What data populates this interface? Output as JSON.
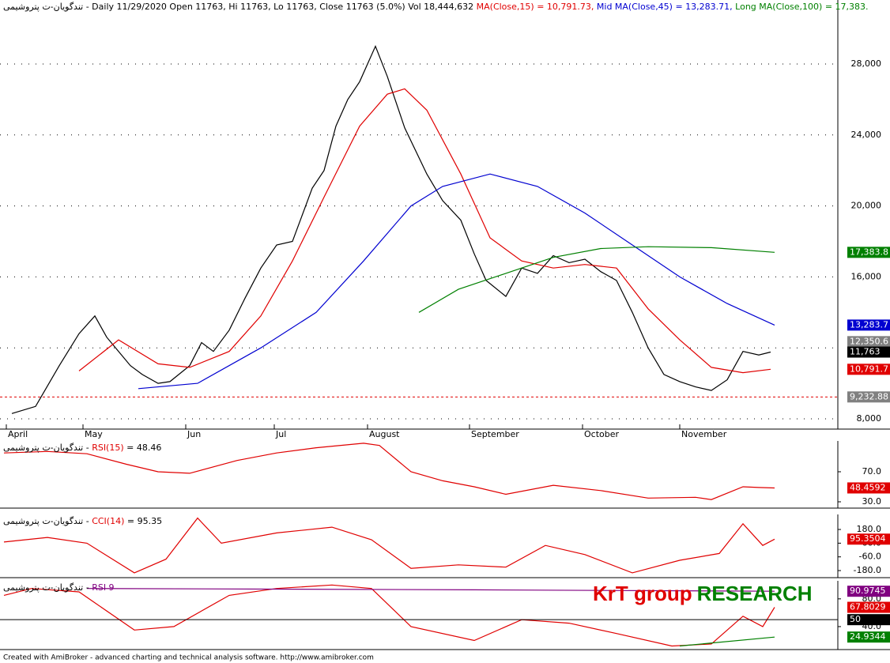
{
  "chart_data": [
    {
      "type": "line",
      "title": [
        {
          "text": "تندگویان-ت پتروشیمی - Daily 11/29/2020 Open 11763, Hi 11763, Lo 11763, Close 11763 (5.0%) Vol 18,444,632 ",
          "color": "#000000"
        },
        {
          "text": "MA(Close,15) = 10,791.73, ",
          "color": "#e00000"
        },
        {
          "text": "Mid MA(Close,45) = 13,283.71, ",
          "color": "#0000d0"
        },
        {
          "text": "Long MA(Close,100) = 17,383.",
          "color": "#008000"
        }
      ],
      "xlim": [
        0,
        1060
      ],
      "ylim": [
        7421,
        31608
      ],
      "xticks": [
        {
          "value": 8,
          "label": "April"
        },
        {
          "value": 105,
          "label": "May"
        },
        {
          "value": 235,
          "label": "Jun"
        },
        {
          "value": 347,
          "label": "Jul"
        },
        {
          "value": 465,
          "label": "August"
        },
        {
          "value": 594,
          "label": "September"
        },
        {
          "value": 737,
          "label": "October"
        },
        {
          "value": 860,
          "label": "November"
        }
      ],
      "yticks": [
        {
          "value": 8000,
          "label": "8,000"
        },
        {
          "value": 12000,
          "label": "12,000"
        },
        {
          "value": 16000,
          "label": "16,000"
        },
        {
          "value": 20000,
          "label": "20,000"
        },
        {
          "value": 24000,
          "label": "24,000"
        },
        {
          "value": 28000,
          "label": "28,000"
        }
      ],
      "grid": true,
      "series": [
        {
          "name": "Close",
          "color": "#000000",
          "x": [
            15,
            45,
            75,
            100,
            120,
            135,
            150,
            165,
            180,
            200,
            215,
            240,
            255,
            270,
            290,
            310,
            330,
            350,
            370,
            395,
            410,
            425,
            440,
            455,
            475,
            490,
            512,
            540,
            560,
            583,
            600,
            615,
            640,
            660,
            680,
            700,
            720,
            740,
            760,
            780,
            800,
            820,
            840,
            860,
            880,
            900,
            920,
            940,
            960,
            975
          ],
          "values": [
            8300,
            8700,
            11000,
            12800,
            13800,
            12600,
            11800,
            11000,
            10500,
            10000,
            10100,
            11000,
            12300,
            11800,
            13000,
            14800,
            16500,
            17800,
            18000,
            21000,
            22000,
            24500,
            26000,
            27000,
            29000,
            27300,
            24400,
            21800,
            20300,
            19200,
            17300,
            15800,
            14900,
            16500,
            16200,
            17200,
            16800,
            17000,
            16300,
            15800,
            14000,
            12000,
            10500,
            10100,
            9800,
            9600,
            10200,
            11800,
            11600,
            11763
          ]
        },
        {
          "name": "MA(Close,15)",
          "color": "#e00000",
          "x": [
            100,
            150,
            200,
            240,
            290,
            330,
            370,
            410,
            455,
            490,
            512,
            540,
            583,
            620,
            660,
            700,
            740,
            780,
            820,
            860,
            900,
            940,
            975
          ],
          "values": [
            10700,
            12450,
            11100,
            10900,
            11800,
            13800,
            16900,
            20500,
            24500,
            26300,
            26600,
            25400,
            21800,
            18200,
            16900,
            16500,
            16700,
            16500,
            14200,
            12450,
            10900,
            10600,
            10792
          ]
        },
        {
          "name": "Mid MA(Close,45)",
          "color": "#0000d0",
          "x": [
            175,
            250,
            330,
            400,
            460,
            520,
            560,
            620,
            680,
            740,
            800,
            860,
            920,
            980
          ],
          "values": [
            9700,
            10000,
            12000,
            14000,
            16900,
            20000,
            21100,
            21800,
            21100,
            19600,
            17800,
            16000,
            14500,
            13284
          ]
        },
        {
          "name": "Long MA(Close,100)",
          "color": "#008000",
          "x": [
            530,
            580,
            640,
            700,
            760,
            820,
            900,
            980
          ],
          "values": [
            14000,
            15300,
            16200,
            17100,
            17600,
            17700,
            17650,
            17384
          ]
        }
      ],
      "tags": [
        {
          "value": 17383.8,
          "label": "17,383.8",
          "color": "#008000"
        },
        {
          "value": 13283.7,
          "label": "13,283.7",
          "color": "#0000d0"
        },
        {
          "value": 12350.6,
          "label": "12,350.6",
          "color": "#808080"
        },
        {
          "value": 11763,
          "label": "11,763",
          "color": "#000000"
        },
        {
          "value": 10791.7,
          "label": "10,791.7",
          "color": "#e00000"
        },
        {
          "value": 9232.88,
          "label": "9,232.88",
          "color": "#808080",
          "dashed": true
        }
      ]
    },
    {
      "type": "line",
      "title": [
        {
          "text": "تندگویان-ت پتروشیمی - ",
          "color": "#000000"
        },
        {
          "text": "RSI(15)",
          "color": "#e00000"
        },
        {
          "text": " = 48.46",
          "color": "#000000"
        }
      ],
      "xlim": [
        0,
        1060
      ],
      "ylim": [
        21.6,
        111
      ],
      "yticks": [
        {
          "value": 30,
          "label": "30.0"
        },
        {
          "value": 70,
          "label": "70.0"
        }
      ],
      "series": [
        {
          "name": "RSI(15)",
          "color": "#e00000",
          "x": [
            5,
            60,
            110,
            160,
            200,
            240,
            300,
            350,
            400,
            460,
            480,
            520,
            560,
            600,
            640,
            700,
            760,
            820,
            880,
            900,
            940,
            960,
            980
          ],
          "values": [
            95,
            97,
            94,
            80,
            70,
            68,
            85,
            95,
            102,
            108,
            105,
            70,
            58,
            50,
            40,
            52,
            45,
            35,
            36,
            33,
            50,
            49,
            48.46
          ]
        }
      ],
      "tags": [
        {
          "value": 48.4592,
          "label": "48.4592",
          "color": "#e00000"
        }
      ]
    },
    {
      "type": "line",
      "title": [
        {
          "text": "تندگویان-ت پتروشیمی - ",
          "color": "#000000"
        },
        {
          "text": "CCI(14)",
          "color": "#e00000"
        },
        {
          "text": " = 95.35",
          "color": "#000000"
        }
      ],
      "xlim": [
        0,
        1060
      ],
      "ylim": [
        -242,
        311.6
      ],
      "yticks": [
        {
          "value": -180,
          "label": "-180.0"
        },
        {
          "value": -60,
          "label": "-60.0"
        },
        {
          "value": 60,
          "label": "60.0"
        },
        {
          "value": 180,
          "label": "180.0"
        }
      ],
      "series": [
        {
          "name": "CCI(14)",
          "color": "#e00000",
          "x": [
            5,
            60,
            110,
            170,
            210,
            250,
            280,
            350,
            420,
            470,
            520,
            580,
            640,
            690,
            740,
            800,
            860,
            910,
            940,
            965,
            980
          ],
          "values": [
            70,
            110,
            60,
            -200,
            -80,
            280,
            60,
            150,
            200,
            90,
            -160,
            -130,
            -150,
            40,
            -40,
            -200,
            -90,
            -30,
            230,
            40,
            95.35
          ]
        }
      ],
      "tags": [
        {
          "value": 95.3504,
          "label": "95.3504",
          "color": "#e00000"
        }
      ]
    },
    {
      "type": "line",
      "title": [
        {
          "text": "تندگویان-ت پتروشیمی - ",
          "color": "#000000"
        },
        {
          "text": "RSI 9",
          "color": "#800080"
        }
      ],
      "xlim": [
        0,
        1060
      ],
      "ylim": [
        6.9,
        106
      ],
      "yticks": [
        {
          "value": 40,
          "label": "40.0"
        },
        {
          "value": 80,
          "label": "80.0"
        }
      ],
      "series": [
        {
          "name": "RSI 9",
          "color": "#e00000",
          "x": [
            5,
            40,
            100,
            170,
            220,
            290,
            350,
            420,
            470,
            520,
            600,
            660,
            720,
            780,
            850,
            900,
            940,
            965,
            980
          ],
          "values": [
            85,
            95,
            90,
            35,
            40,
            85,
            95,
            100,
            95,
            40,
            20,
            50,
            45,
            30,
            12,
            15,
            55,
            40,
            67.8
          ]
        },
        {
          "name": "Upper",
          "color": "#800080",
          "x": [
            110,
            600,
            980
          ],
          "values": [
            95,
            93,
            90.97
          ]
        },
        {
          "name": "Lower",
          "color": "#008000",
          "x": [
            860,
            980
          ],
          "values": [
            12,
            24.93
          ]
        }
      ],
      "tags": [
        {
          "value": 90.9745,
          "label": "90.9745",
          "color": "#800080"
        },
        {
          "value": 67.8029,
          "label": "67.8029",
          "color": "#e00000"
        },
        {
          "value": 50,
          "label": "50",
          "color": "#000000",
          "solid": true
        },
        {
          "value": 24.9344,
          "label": "24.9344",
          "color": "#008000"
        }
      ]
    }
  ],
  "watermark": [
    "KrT group",
    "RESEARCH"
  ],
  "footer": "Created with AmiBroker - advanced charting and technical analysis software. http://www.amibroker.com"
}
